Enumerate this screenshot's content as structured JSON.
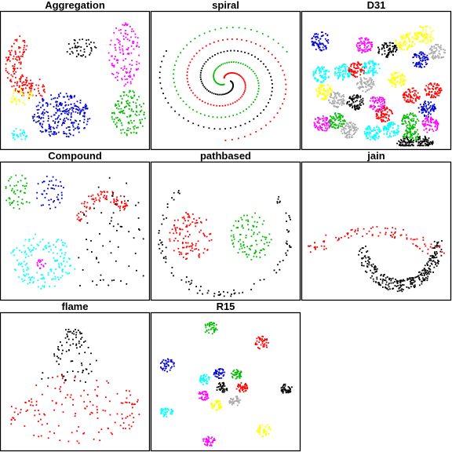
{
  "chart_data": [
    {
      "type": "scatter",
      "title": "Aggregation",
      "colors": [
        "#ff0000",
        "#000000",
        "#ff00ff",
        "#ffff00",
        "#0000cc",
        "#00bb00",
        "#00ffff"
      ],
      "clusters": [
        {
          "shape": "crescent",
          "color": 0,
          "cx": 0.19,
          "cy": 0.28,
          "r": 0.24,
          "n": 170
        },
        {
          "shape": "blob",
          "color": 1,
          "cx": 0.54,
          "cy": 0.25,
          "rx": 0.11,
          "ry": 0.07,
          "n": 45
        },
        {
          "shape": "blob",
          "color": 2,
          "cx": 0.84,
          "cy": 0.3,
          "rx": 0.11,
          "ry": 0.24,
          "n": 130
        },
        {
          "shape": "blob",
          "color": 3,
          "cx": 0.12,
          "cy": 0.62,
          "rx": 0.08,
          "ry": 0.07,
          "n": 35
        },
        {
          "shape": "blob",
          "color": 4,
          "cx": 0.4,
          "cy": 0.76,
          "rx": 0.2,
          "ry": 0.17,
          "n": 270
        },
        {
          "shape": "blob",
          "color": 5,
          "cx": 0.87,
          "cy": 0.74,
          "rx": 0.12,
          "ry": 0.17,
          "n": 130
        },
        {
          "shape": "blob",
          "color": 6,
          "cx": 0.11,
          "cy": 0.9,
          "rx": 0.06,
          "ry": 0.05,
          "n": 30
        }
      ]
    },
    {
      "type": "scatter",
      "title": "spiral",
      "colors": [
        "#000000",
        "#00bb00",
        "#ff0000"
      ],
      "clusters": [
        {
          "shape": "spiral",
          "color": 0,
          "cx": 0.5,
          "cy": 0.5,
          "phase": 0.0,
          "n": 106
        },
        {
          "shape": "spiral",
          "color": 1,
          "cx": 0.5,
          "cy": 0.5,
          "phase": 2.09,
          "n": 106
        },
        {
          "shape": "spiral",
          "color": 2,
          "cx": 0.5,
          "cy": 0.5,
          "phase": 4.19,
          "n": 106
        }
      ]
    },
    {
      "type": "scatter",
      "title": "D31",
      "colors": [
        "#0000cc",
        "#ff00ff",
        "#000000",
        "#ffff00",
        "#aaaaaa",
        "#00ffff",
        "#ff0000",
        "#00bb00"
      ],
      "clusters": [
        {
          "shape": "blob",
          "color": 0,
          "cx": 0.11,
          "cy": 0.2,
          "rx": 0.07,
          "ry": 0.07,
          "n": 70
        },
        {
          "shape": "blob",
          "color": 1,
          "cx": 0.41,
          "cy": 0.23,
          "rx": 0.06,
          "ry": 0.06,
          "n": 70
        },
        {
          "shape": "blob",
          "color": 2,
          "cx": 0.57,
          "cy": 0.26,
          "rx": 0.07,
          "ry": 0.06,
          "n": 70
        },
        {
          "shape": "blob",
          "color": 3,
          "cx": 0.7,
          "cy": 0.2,
          "rx": 0.07,
          "ry": 0.07,
          "n": 70
        },
        {
          "shape": "blob",
          "color": 3,
          "cx": 0.83,
          "cy": 0.15,
          "rx": 0.07,
          "ry": 0.07,
          "n": 70
        },
        {
          "shape": "blob",
          "color": 0,
          "cx": 0.8,
          "cy": 0.34,
          "rx": 0.06,
          "ry": 0.06,
          "n": 70
        },
        {
          "shape": "blob",
          "color": 4,
          "cx": 0.92,
          "cy": 0.28,
          "rx": 0.06,
          "ry": 0.06,
          "n": 60
        },
        {
          "shape": "blob",
          "color": 5,
          "cx": 0.11,
          "cy": 0.45,
          "rx": 0.06,
          "ry": 0.06,
          "n": 70
        },
        {
          "shape": "blob",
          "color": 5,
          "cx": 0.26,
          "cy": 0.43,
          "rx": 0.06,
          "ry": 0.06,
          "n": 70
        },
        {
          "shape": "blob",
          "color": 6,
          "cx": 0.36,
          "cy": 0.41,
          "rx": 0.06,
          "ry": 0.06,
          "n": 70
        },
        {
          "shape": "blob",
          "color": 5,
          "cx": 0.46,
          "cy": 0.4,
          "rx": 0.06,
          "ry": 0.06,
          "n": 70
        },
        {
          "shape": "blob",
          "color": 4,
          "cx": 0.42,
          "cy": 0.52,
          "rx": 0.06,
          "ry": 0.06,
          "n": 70
        },
        {
          "shape": "blob",
          "color": 3,
          "cx": 0.64,
          "cy": 0.49,
          "rx": 0.06,
          "ry": 0.06,
          "n": 70
        },
        {
          "shape": "blob",
          "color": 6,
          "cx": 0.74,
          "cy": 0.61,
          "rx": 0.06,
          "ry": 0.06,
          "n": 70
        },
        {
          "shape": "blob",
          "color": 6,
          "cx": 0.89,
          "cy": 0.57,
          "rx": 0.06,
          "ry": 0.06,
          "n": 70
        },
        {
          "shape": "blob",
          "color": 3,
          "cx": 0.13,
          "cy": 0.58,
          "rx": 0.06,
          "ry": 0.06,
          "n": 70
        },
        {
          "shape": "blob",
          "color": 4,
          "cx": 0.22,
          "cy": 0.64,
          "rx": 0.06,
          "ry": 0.06,
          "n": 70
        },
        {
          "shape": "blob",
          "color": 2,
          "cx": 0.35,
          "cy": 0.66,
          "rx": 0.06,
          "ry": 0.06,
          "n": 70
        },
        {
          "shape": "blob",
          "color": 1,
          "cx": 0.5,
          "cy": 0.67,
          "rx": 0.06,
          "ry": 0.06,
          "n": 70
        },
        {
          "shape": "blob",
          "color": 6,
          "cx": 0.55,
          "cy": 0.75,
          "rx": 0.06,
          "ry": 0.06,
          "n": 70
        },
        {
          "shape": "blob",
          "color": 0,
          "cx": 0.85,
          "cy": 0.71,
          "rx": 0.06,
          "ry": 0.06,
          "n": 70
        },
        {
          "shape": "blob",
          "color": 1,
          "cx": 0.12,
          "cy": 0.82,
          "rx": 0.06,
          "ry": 0.06,
          "n": 70
        },
        {
          "shape": "blob",
          "color": 7,
          "cx": 0.22,
          "cy": 0.8,
          "rx": 0.06,
          "ry": 0.06,
          "n": 70
        },
        {
          "shape": "blob",
          "color": 4,
          "cx": 0.31,
          "cy": 0.87,
          "rx": 0.06,
          "ry": 0.06,
          "n": 70
        },
        {
          "shape": "blob",
          "color": 5,
          "cx": 0.47,
          "cy": 0.89,
          "rx": 0.06,
          "ry": 0.06,
          "n": 70
        },
        {
          "shape": "blob",
          "color": 5,
          "cx": 0.6,
          "cy": 0.87,
          "rx": 0.06,
          "ry": 0.06,
          "n": 70
        },
        {
          "shape": "blob",
          "color": 7,
          "cx": 0.73,
          "cy": 0.8,
          "rx": 0.06,
          "ry": 0.06,
          "n": 70
        },
        {
          "shape": "blob",
          "color": 7,
          "cx": 0.74,
          "cy": 0.91,
          "rx": 0.06,
          "ry": 0.06,
          "n": 70
        },
        {
          "shape": "blob",
          "color": 1,
          "cx": 0.87,
          "cy": 0.83,
          "rx": 0.06,
          "ry": 0.06,
          "n": 70
        },
        {
          "shape": "blob",
          "color": 2,
          "cx": 0.7,
          "cy": 0.97,
          "rx": 0.06,
          "ry": 0.05,
          "n": 70
        },
        {
          "shape": "blob",
          "color": 2,
          "cx": 0.83,
          "cy": 0.96,
          "rx": 0.06,
          "ry": 0.05,
          "n": 70
        }
      ]
    },
    {
      "type": "scatter",
      "title": "Compound",
      "colors": [
        "#00bb00",
        "#0000cc",
        "#ff0000",
        "#000000",
        "#00ffff",
        "#ff00ff"
      ],
      "clusters": [
        {
          "shape": "blob",
          "color": 0,
          "cx": 0.1,
          "cy": 0.2,
          "rx": 0.1,
          "ry": 0.13,
          "n": 50
        },
        {
          "shape": "blob",
          "color": 1,
          "cx": 0.32,
          "cy": 0.2,
          "rx": 0.1,
          "ry": 0.13,
          "n": 45
        },
        {
          "shape": "boomerang",
          "color": 2,
          "cx": 0.72,
          "cy": 0.37,
          "n": 90
        },
        {
          "shape": "scatter",
          "color": 3,
          "cx": 0.75,
          "cy": 0.5,
          "rx": 0.23,
          "ry": 0.42,
          "n": 60
        },
        {
          "shape": "ring",
          "color": 4,
          "cx": 0.26,
          "cy": 0.73,
          "rx": 0.22,
          "ry": 0.2,
          "n": 160
        },
        {
          "shape": "blob",
          "color": 5,
          "cx": 0.26,
          "cy": 0.74,
          "rx": 0.03,
          "ry": 0.04,
          "n": 16
        }
      ]
    },
    {
      "type": "scatter",
      "title": "pathbased",
      "colors": [
        "#ff0000",
        "#00bb00",
        "#000000"
      ],
      "clusters": [
        {
          "shape": "blob",
          "color": 0,
          "cx": 0.25,
          "cy": 0.53,
          "rx": 0.15,
          "ry": 0.18,
          "n": 110
        },
        {
          "shape": "blob",
          "color": 1,
          "cx": 0.68,
          "cy": 0.53,
          "rx": 0.15,
          "ry": 0.18,
          "n": 100
        },
        {
          "shape": "arc",
          "color": 2,
          "cx": 0.49,
          "cy": 0.52,
          "rx": 0.45,
          "ry": 0.45,
          "n": 95
        }
      ]
    },
    {
      "type": "scatter",
      "title": "jain",
      "colors": [
        "#ff0000",
        "#000000"
      ],
      "clusters": [
        {
          "shape": "cap",
          "color": 0,
          "cx": 0.48,
          "cy": 0.4,
          "n": 95
        },
        {
          "shape": "ucurve",
          "color": 1,
          "cx": 0.66,
          "cy": 0.56,
          "n": 275
        }
      ]
    },
    {
      "type": "scatter",
      "title": "flame",
      "colors": [
        "#000000",
        "#ff0000"
      ],
      "clusters": [
        {
          "shape": "cone",
          "color": 0,
          "cx": 0.48,
          "cy": 0.32,
          "n": 85
        },
        {
          "shape": "smile",
          "color": 1,
          "cx": 0.47,
          "cy": 0.7,
          "n": 150
        }
      ]
    },
    {
      "type": "scatter",
      "title": "R15",
      "colors": [
        "#00bb00",
        "#ff0000",
        "#0000cc",
        "#00ffff",
        "#000000",
        "#ff00ff",
        "#ffff00",
        "#aaaaaa"
      ],
      "clusters": [
        {
          "shape": "blob",
          "color": 0,
          "cx": 0.39,
          "cy": 0.09,
          "rx": 0.05,
          "ry": 0.05,
          "n": 40
        },
        {
          "shape": "blob",
          "color": 1,
          "cx": 0.75,
          "cy": 0.2,
          "rx": 0.05,
          "ry": 0.05,
          "n": 40
        },
        {
          "shape": "blob",
          "color": 2,
          "cx": 0.09,
          "cy": 0.37,
          "rx": 0.05,
          "ry": 0.05,
          "n": 40
        },
        {
          "shape": "blob",
          "color": 2,
          "cx": 0.45,
          "cy": 0.43,
          "rx": 0.04,
          "ry": 0.04,
          "n": 40
        },
        {
          "shape": "blob",
          "color": 0,
          "cx": 0.57,
          "cy": 0.44,
          "rx": 0.04,
          "ry": 0.04,
          "n": 40
        },
        {
          "shape": "blob",
          "color": 3,
          "cx": 0.35,
          "cy": 0.48,
          "rx": 0.04,
          "ry": 0.04,
          "n": 40
        },
        {
          "shape": "blob",
          "color": 4,
          "cx": 0.47,
          "cy": 0.54,
          "rx": 0.04,
          "ry": 0.04,
          "n": 40
        },
        {
          "shape": "blob",
          "color": 1,
          "cx": 0.61,
          "cy": 0.54,
          "rx": 0.04,
          "ry": 0.04,
          "n": 40
        },
        {
          "shape": "blob",
          "color": 5,
          "cx": 0.34,
          "cy": 0.6,
          "rx": 0.04,
          "ry": 0.04,
          "n": 40
        },
        {
          "shape": "blob",
          "color": 7,
          "cx": 0.56,
          "cy": 0.64,
          "rx": 0.04,
          "ry": 0.04,
          "n": 40
        },
        {
          "shape": "blob",
          "color": 6,
          "cx": 0.43,
          "cy": 0.67,
          "rx": 0.04,
          "ry": 0.04,
          "n": 40
        },
        {
          "shape": "blob",
          "color": 4,
          "cx": 0.92,
          "cy": 0.55,
          "rx": 0.04,
          "ry": 0.04,
          "n": 40
        },
        {
          "shape": "blob",
          "color": 3,
          "cx": 0.08,
          "cy": 0.72,
          "rx": 0.05,
          "ry": 0.04,
          "n": 40
        },
        {
          "shape": "blob",
          "color": 6,
          "cx": 0.76,
          "cy": 0.86,
          "rx": 0.05,
          "ry": 0.05,
          "n": 40
        },
        {
          "shape": "blob",
          "color": 5,
          "cx": 0.38,
          "cy": 0.94,
          "rx": 0.05,
          "ry": 0.04,
          "n": 40
        }
      ]
    }
  ]
}
